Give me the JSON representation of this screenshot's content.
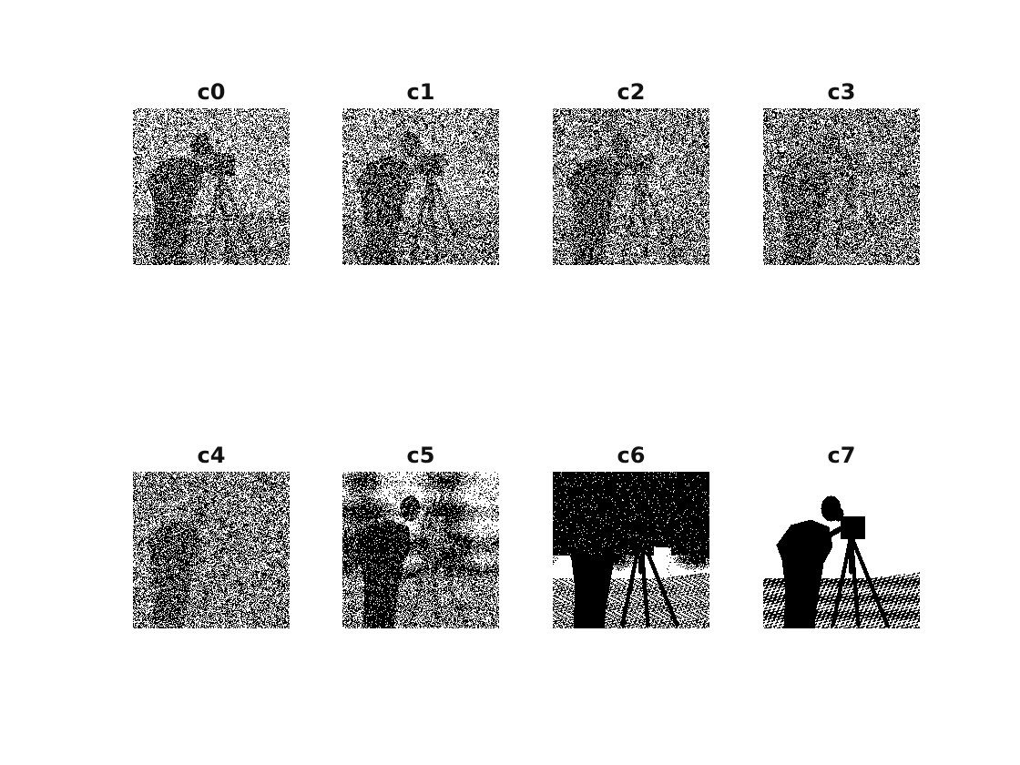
{
  "figure": {
    "panels": [
      {
        "title": "c0",
        "picture": "bit-plane-0-noise"
      },
      {
        "title": "c1",
        "picture": "bit-plane-1-noise"
      },
      {
        "title": "c2",
        "picture": "bit-plane-2-cameraman-faint"
      },
      {
        "title": "c3",
        "picture": "bit-plane-3-cameraman"
      },
      {
        "title": "c4",
        "picture": "bit-plane-4-cameraman"
      },
      {
        "title": "c5",
        "picture": "bit-plane-5-cameraman"
      },
      {
        "title": "c6",
        "picture": "bit-plane-6-cameraman-dark-sky"
      },
      {
        "title": "c7",
        "picture": "bit-plane-7-cameraman-silhouette"
      }
    ]
  }
}
